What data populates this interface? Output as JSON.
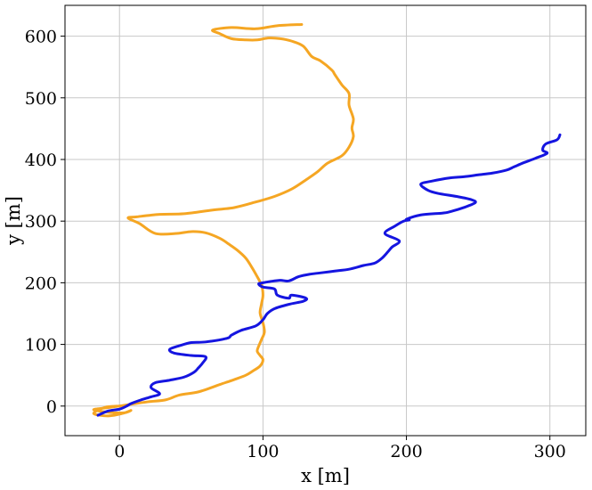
{
  "chart_data": {
    "type": "line",
    "title": "",
    "xlabel": "x [m]",
    "ylabel": "y [m]",
    "xlim": [
      -38,
      325
    ],
    "ylim": [
      -48,
      650
    ],
    "grid": true,
    "legend": "none",
    "xticks": [
      0,
      100,
      200,
      300
    ],
    "yticks": [
      0,
      100,
      200,
      300,
      400,
      500,
      600
    ],
    "xtick_labels": [
      "0",
      "100",
      "200",
      "300"
    ],
    "ytick_labels": [
      "0",
      "100",
      "200",
      "300",
      "400",
      "500",
      "600"
    ],
    "series": [
      {
        "color": "#f5a623",
        "x": [
          127,
          110,
          95,
          78,
          65,
          70,
          78,
          88,
          96,
          104,
          112,
          120,
          128,
          134,
          140,
          148,
          150,
          155,
          160,
          160,
          163,
          162,
          163,
          160,
          155,
          145,
          138,
          130,
          120,
          108,
          95,
          80,
          65,
          45,
          28,
          12,
          6,
          14,
          25,
          40,
          50,
          60,
          70,
          76,
          82,
          88,
          92,
          95,
          99,
          100,
          99,
          98,
          100,
          101,
          99,
          97,
          96,
          98,
          100,
          98,
          93,
          88,
          80,
          70,
          55,
          42,
          32,
          20,
          8,
          0,
          -10,
          -18,
          -8,
          3,
          8,
          2,
          -8,
          -18,
          -10,
          0
        ],
        "y": [
          619,
          617,
          612,
          614,
          610,
          604,
          596,
          594,
          594,
          597,
          596,
          592,
          584,
          567,
          560,
          545,
          538,
          521,
          507,
          488,
          466,
          451,
          437,
          420,
          406,
          394,
          380,
          367,
          352,
          340,
          331,
          322,
          318,
          312,
          311,
          307,
          305,
          296,
          280,
          280,
          283,
          281,
          272,
          263,
          253,
          240,
          226,
          214,
          196,
          180,
          166,
          151,
          135,
          120,
          108,
          97,
          89,
          82,
          75,
          65,
          57,
          50,
          43,
          35,
          23,
          18,
          10,
          7,
          3,
          0,
          -3,
          -6,
          -10,
          -11,
          -7,
          -12,
          -16,
          -12,
          -2,
          0
        ]
      },
      {
        "color": "#1515e0",
        "x": [
          -15,
          -8,
          0,
          5,
          8,
          15,
          22,
          28,
          22,
          25,
          35,
          45,
          52,
          55,
          58,
          60,
          50,
          38,
          35,
          42,
          50,
          60,
          75,
          78,
          85,
          95,
          100,
          103,
          108,
          118,
          128,
          130,
          120,
          118,
          110,
          108,
          100,
          97,
          100,
          105,
          112,
          118,
          125,
          133,
          140,
          150,
          160,
          170,
          178,
          183,
          187,
          190,
          195,
          185,
          192,
          198,
          202,
          200,
          210,
          225,
          230,
          240,
          248,
          245,
          235,
          222,
          215,
          210,
          218,
          230,
          240,
          250,
          260,
          270,
          275,
          282,
          290,
          298,
          295,
          297,
          305,
          307
        ],
        "y": [
          -15,
          -8,
          -5,
          0,
          4,
          10,
          15,
          20,
          30,
          38,
          42,
          47,
          55,
          62,
          70,
          80,
          82,
          86,
          92,
          98,
          103,
          104,
          110,
          115,
          123,
          130,
          140,
          150,
          158,
          165,
          170,
          175,
          180,
          175,
          180,
          190,
          193,
          198,
          200,
          202,
          204,
          203,
          210,
          214,
          216,
          219,
          222,
          228,
          232,
          240,
          250,
          258,
          268,
          280,
          292,
          300,
          302,
          303,
          310,
          313,
          315,
          322,
          330,
          335,
          340,
          345,
          350,
          360,
          365,
          370,
          372,
          375,
          378,
          383,
          388,
          395,
          402,
          410,
          415,
          425,
          432,
          440
        ]
      }
    ]
  }
}
